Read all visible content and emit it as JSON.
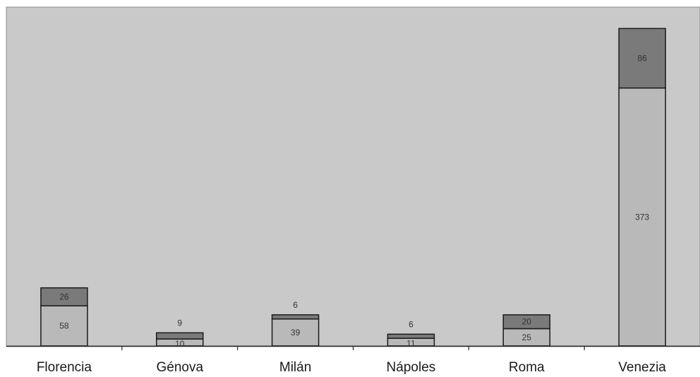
{
  "chart_data": {
    "type": "bar",
    "stacked": true,
    "title": "",
    "xlabel": "",
    "ylabel": "",
    "categories": [
      "Florencia",
      "Génova",
      "Milán",
      "Nápoles",
      "Roma",
      "Venezia"
    ],
    "series": [
      {
        "values": [
          58,
          10,
          39,
          11,
          25,
          373
        ],
        "color": "#b9b9b9"
      },
      {
        "values": [
          26,
          9,
          6,
          6,
          20,
          86
        ],
        "color": "#7a7a7a"
      }
    ],
    "ylim": [
      0,
      490
    ],
    "grid": false,
    "legend": "none",
    "plot_background": "#c9c9c9"
  }
}
